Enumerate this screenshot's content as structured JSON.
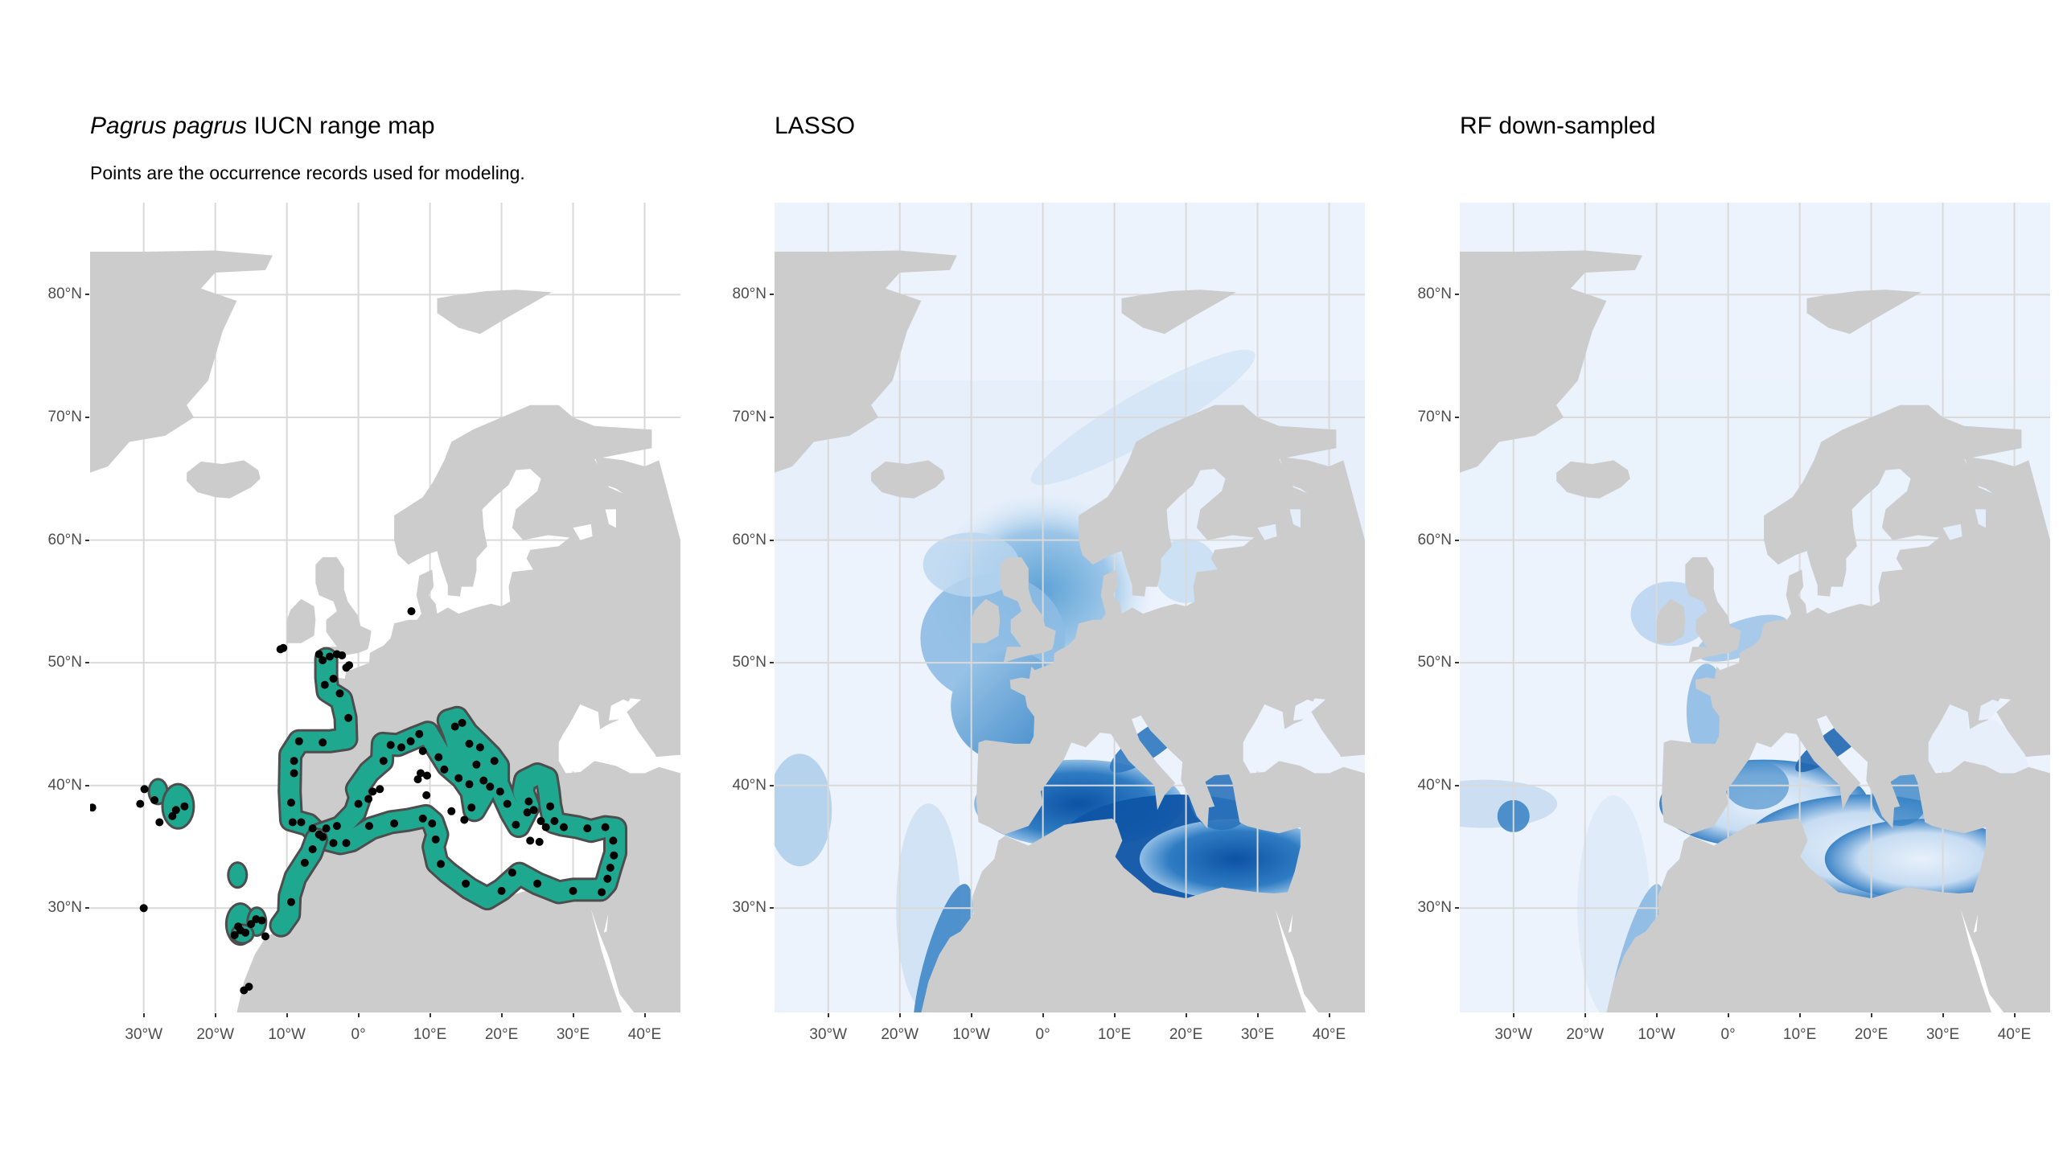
{
  "panels": [
    {
      "id": "p1",
      "title_species": "Pagrus pagrus",
      "title_rest": " IUCN range map",
      "subtitle": "Points are the occurrence records used for modeling.",
      "style": "range"
    },
    {
      "id": "p2",
      "title_species": "",
      "title_rest": "LASSO",
      "subtitle": "",
      "style": "lasso"
    },
    {
      "id": "p3",
      "title_species": "",
      "title_rest": "RF down-sampled",
      "subtitle": "",
      "style": "rf"
    }
  ],
  "axes": {
    "y_ticks": [
      {
        "label": "80°N",
        "lat": 80
      },
      {
        "label": "70°N",
        "lat": 70
      },
      {
        "label": "60°N",
        "lat": 60
      },
      {
        "label": "50°N",
        "lat": 50
      },
      {
        "label": "40°N",
        "lat": 40
      },
      {
        "label": "30°N",
        "lat": 30
      }
    ],
    "x_ticks": [
      {
        "label": "30°W",
        "lon": -30
      },
      {
        "label": "20°W",
        "lon": -20
      },
      {
        "label": "10°W",
        "lon": -10
      },
      {
        "label": "0°",
        "lon": 0
      },
      {
        "label": "10°E",
        "lon": 10
      },
      {
        "label": "20°E",
        "lon": 20
      },
      {
        "label": "30°E",
        "lon": 30
      },
      {
        "label": "40°E",
        "lon": 40
      }
    ],
    "lon_range": [
      -37.5,
      45
    ],
    "lat_range": [
      21.5,
      87.5
    ]
  },
  "colors": {
    "land": "#cccccc",
    "range_fill": "#1fa890",
    "range_outline": "#4d4d4d",
    "points": "#000000",
    "grid": "#d9d9d9",
    "ocean_low": "#edf3fd",
    "ocean_high": "#0b4ea0"
  }
}
